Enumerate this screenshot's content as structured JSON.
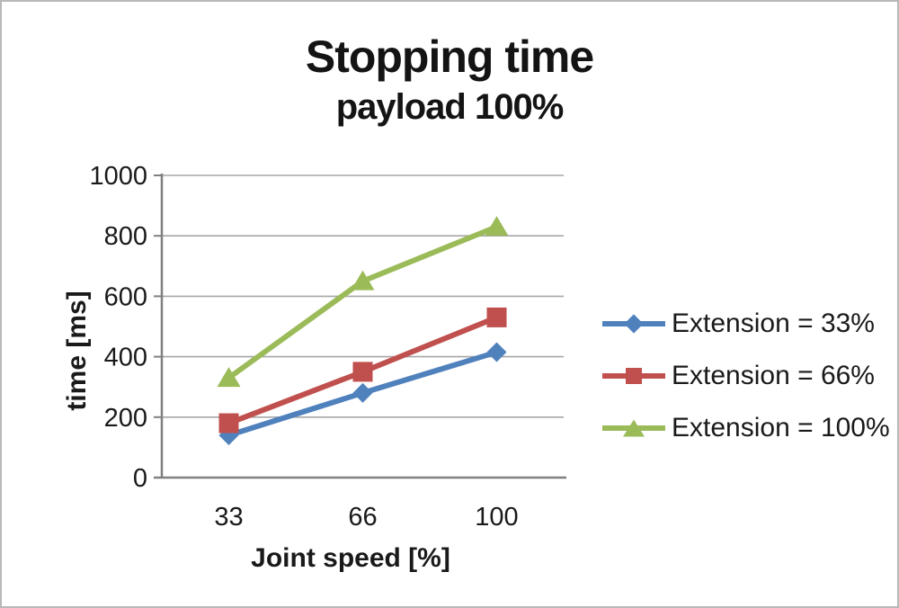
{
  "chart": {
    "title": "Stopping time",
    "subtitle": "payload 100%",
    "x_axis_label": "Joint speed [%]",
    "y_axis_label": "time [ms]"
  },
  "chart_data": {
    "type": "line",
    "title": "Stopping time",
    "subtitle": "payload 100%",
    "categories": [
      "33",
      "66",
      "100"
    ],
    "series": [
      {
        "name": "Extension = 33%",
        "values": [
          140,
          280,
          415
        ],
        "color": "#4f81bd",
        "marker": "diamond"
      },
      {
        "name": "Extension = 66%",
        "values": [
          180,
          350,
          530
        ],
        "color": "#c0504d",
        "marker": "square"
      },
      {
        "name": "Extension = 100%",
        "values": [
          330,
          650,
          830
        ],
        "color": "#9bbb59",
        "marker": "triangle"
      }
    ],
    "xlabel": "Joint speed [%]",
    "ylabel": "time [ms]",
    "ylim": [
      0,
      1000
    ],
    "yticks": [
      0,
      200,
      400,
      600,
      800,
      1000
    ],
    "grid": true,
    "legend_position": "right",
    "colors": {
      "gridline": "#a6a6a6",
      "axis": "#808080",
      "tick_label": "#1a1a1a",
      "title_text": "#141414"
    }
  }
}
